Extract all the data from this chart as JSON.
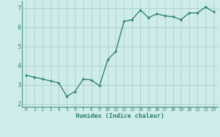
{
  "x": [
    0,
    1,
    2,
    3,
    4,
    5,
    6,
    7,
    8,
    9,
    10,
    11,
    12,
    13,
    14,
    15,
    16,
    17,
    18,
    19,
    20,
    21,
    22,
    23
  ],
  "y": [
    3.5,
    3.4,
    3.3,
    3.2,
    3.1,
    2.4,
    2.65,
    3.3,
    3.25,
    2.95,
    4.3,
    4.75,
    6.3,
    6.4,
    6.9,
    6.5,
    6.7,
    6.6,
    6.55,
    6.4,
    6.75,
    6.75,
    7.05,
    6.8
  ],
  "line_color": "#2a7f70",
  "marker_color": "#2a7f70",
  "bg_color": "#ceecea",
  "grid_color": "#a8cec9",
  "xlabel": "Humidex (Indice chaleur)",
  "xlim": [
    -0.5,
    23.5
  ],
  "ylim": [
    1.85,
    7.35
  ],
  "yticks": [
    2,
    3,
    4,
    5,
    6,
    7
  ],
  "xticks": [
    0,
    1,
    2,
    3,
    4,
    5,
    6,
    7,
    8,
    9,
    10,
    11,
    12,
    13,
    14,
    15,
    16,
    17,
    18,
    19,
    20,
    21,
    22,
    23
  ],
  "xlabel_color": "#2a7f70",
  "tick_color": "#2a7f70",
  "marker_size": 2.5,
  "line_width": 1.0
}
